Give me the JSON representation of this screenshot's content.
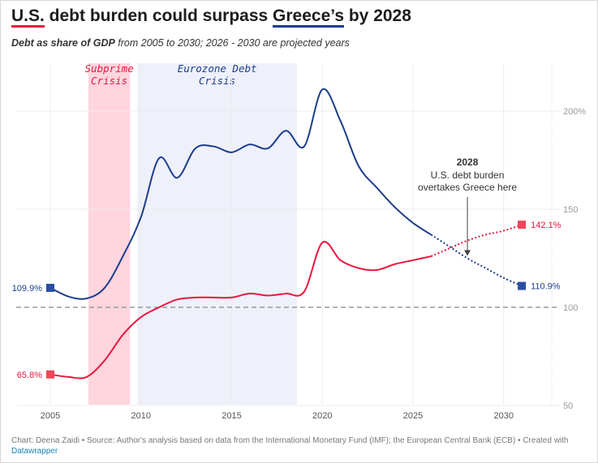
{
  "header": {
    "title_part1": "U.S.",
    "title_part2": " debt burden could surpass ",
    "title_part3": "Greece’s",
    "title_part4": " by 2028",
    "subtitle_bold": "Debt as share of GDP",
    "subtitle_rest": " from 2005 to 2030; 2026 - 2030 are projected years"
  },
  "footer": {
    "credit": "Chart: Deena Zaidi • Source: Author's analysis based on data from the International Monetary Fund (IMF); the European Central Bank (ECB) • Created with",
    "tool": "Datawrapper"
  },
  "colors": {
    "us": "#e8173f",
    "greece": "#1c3d8c",
    "us_marker": "#f0445a",
    "greece_marker": "#2a4ea3",
    "subprime_band": "#ffd5de",
    "eurozone_band": "#eef0fa",
    "reference_line": "#999999"
  },
  "chart_data": {
    "type": "line",
    "title": "U.S. debt burden could surpass Greece’s by 2028",
    "xlim": [
      2005,
      2031
    ],
    "ylim": [
      50,
      215
    ],
    "x_ticks": [
      "2005",
      "2010",
      "2015",
      "2020",
      "2025",
      "2030"
    ],
    "y_ticks": [
      "50",
      "100",
      "150",
      "200%"
    ],
    "reference_line": 100,
    "projection_start": 2026,
    "bands": [
      {
        "label_line1": "Subprime",
        "label_line2": "Crisis",
        "from": 2007.1,
        "to": 2009.4
      },
      {
        "label_line1": "Eurozone Debt",
        "label_line2": "Crisis",
        "from": 2009.8,
        "to": 2018.6
      }
    ],
    "series": [
      {
        "name": "Greece",
        "x": [
          2005,
          2006,
          2007,
          2008,
          2009,
          2010,
          2011,
          2012,
          2013,
          2014,
          2015,
          2016,
          2017,
          2018,
          2019,
          2020,
          2021,
          2022,
          2023,
          2024,
          2025,
          2026,
          2027,
          2028,
          2029,
          2030,
          2031
        ],
        "values": [
          109.9,
          105.5,
          104.5,
          110,
          126,
          146,
          176,
          166,
          181,
          182,
          179,
          183,
          181,
          190,
          182,
          211,
          195,
          172,
          161,
          151,
          143,
          137,
          131,
          125,
          120,
          115,
          110.9
        ],
        "end_label": "110.9%",
        "start_label": "109.9%"
      },
      {
        "name": "U.S.",
        "x": [
          2005,
          2006,
          2007,
          2008,
          2009,
          2010,
          2011,
          2012,
          2013,
          2014,
          2015,
          2016,
          2017,
          2018,
          2019,
          2020,
          2021,
          2022,
          2023,
          2024,
          2025,
          2026,
          2027,
          2028,
          2029,
          2030,
          2031
        ],
        "values": [
          65.8,
          64.5,
          64.5,
          73,
          86,
          95,
          100,
          104,
          105,
          105,
          105,
          107,
          106,
          107,
          108,
          133,
          124,
          120,
          119,
          122,
          124,
          126,
          130,
          134,
          137,
          139,
          142.1
        ],
        "end_label": "142.1%",
        "start_label": "65.8%"
      }
    ],
    "annotation": {
      "heading": "2028",
      "line1": "U.S. debt burden",
      "line2": "overtakes Greece here",
      "x": 2028,
      "y": 125
    }
  }
}
